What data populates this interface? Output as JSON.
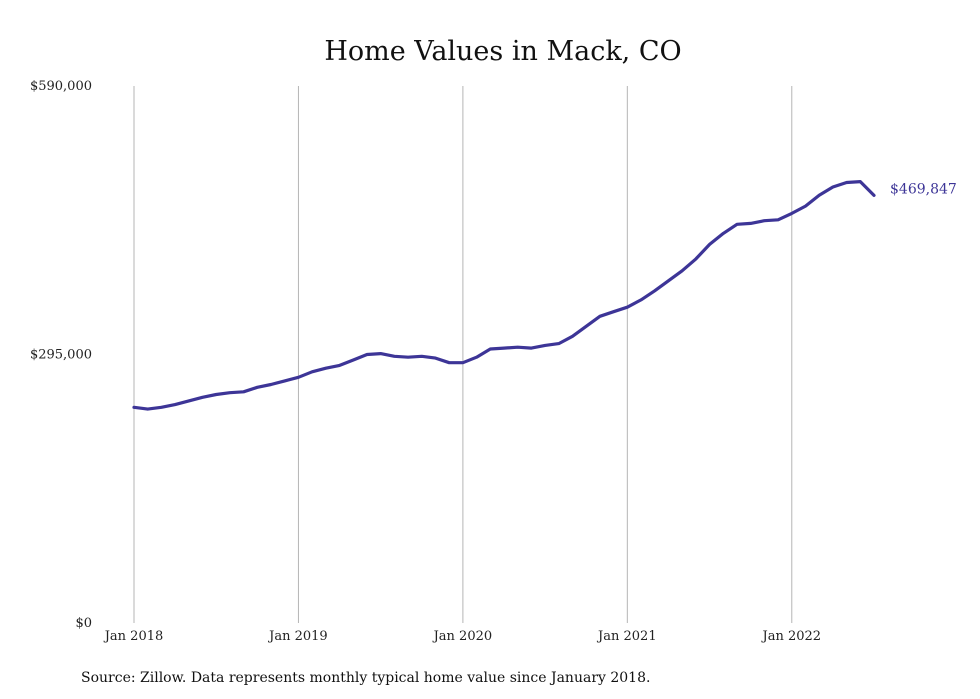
{
  "chart_data": {
    "type": "line",
    "title": "Home Values in Mack, CO",
    "source": "Source: Zillow. Data represents monthly typical home value since January 2018.",
    "xlabel": "",
    "ylabel": "",
    "y_ticks": [
      {
        "value": 0,
        "label": "$0"
      },
      {
        "value": 295000,
        "label": "$295,000"
      },
      {
        "value": 590000,
        "label": "$590,000"
      }
    ],
    "ylim": [
      0,
      590000
    ],
    "x_ticks": [
      {
        "value": "2018-01",
        "label": "Jan 2018"
      },
      {
        "value": "2019-01",
        "label": "Jan 2019"
      },
      {
        "value": "2020-01",
        "label": "Jan 2020"
      },
      {
        "value": "2021-01",
        "label": "Jan 2021"
      },
      {
        "value": "2022-01",
        "label": "Jan 2022"
      }
    ],
    "xlim": [
      "2018-01",
      "2022-07"
    ],
    "grid": "vertical",
    "line_color": "#3d3597",
    "end_label": "$469,847",
    "series": [
      {
        "x": [
          "2018-01",
          "2018-02",
          "2018-03",
          "2018-04",
          "2018-05",
          "2018-06",
          "2018-07",
          "2018-08",
          "2018-09",
          "2018-10",
          "2018-11",
          "2018-12",
          "2019-01",
          "2019-02",
          "2019-03",
          "2019-04",
          "2019-05",
          "2019-06",
          "2019-07",
          "2019-08",
          "2019-09",
          "2019-10",
          "2019-11",
          "2019-12",
          "2020-01",
          "2020-02",
          "2020-03",
          "2020-04",
          "2020-05",
          "2020-06",
          "2020-07",
          "2020-08",
          "2020-09",
          "2020-10",
          "2020-11",
          "2020-12",
          "2021-01",
          "2021-02",
          "2021-03",
          "2021-04",
          "2021-05",
          "2021-06",
          "2021-07",
          "2021-08",
          "2021-09",
          "2021-10",
          "2021-11",
          "2021-12",
          "2022-01",
          "2022-02",
          "2022-03",
          "2022-04",
          "2022-05",
          "2022-06",
          "2022-07"
        ],
        "values": [
          237000,
          235000,
          237000,
          240000,
          244000,
          248000,
          251000,
          253000,
          254000,
          259000,
          262000,
          266000,
          270000,
          276000,
          280000,
          283000,
          289000,
          295000,
          296000,
          293000,
          292000,
          293000,
          291000,
          286000,
          286000,
          292000,
          301000,
          302000,
          303000,
          302000,
          305000,
          307000,
          315000,
          326000,
          337000,
          342000,
          347000,
          355000,
          365000,
          376000,
          387000,
          400000,
          416000,
          428000,
          438000,
          439000,
          442000,
          443000,
          450000,
          458000,
          470000,
          479000,
          484000,
          485000,
          469847
        ]
      }
    ]
  }
}
